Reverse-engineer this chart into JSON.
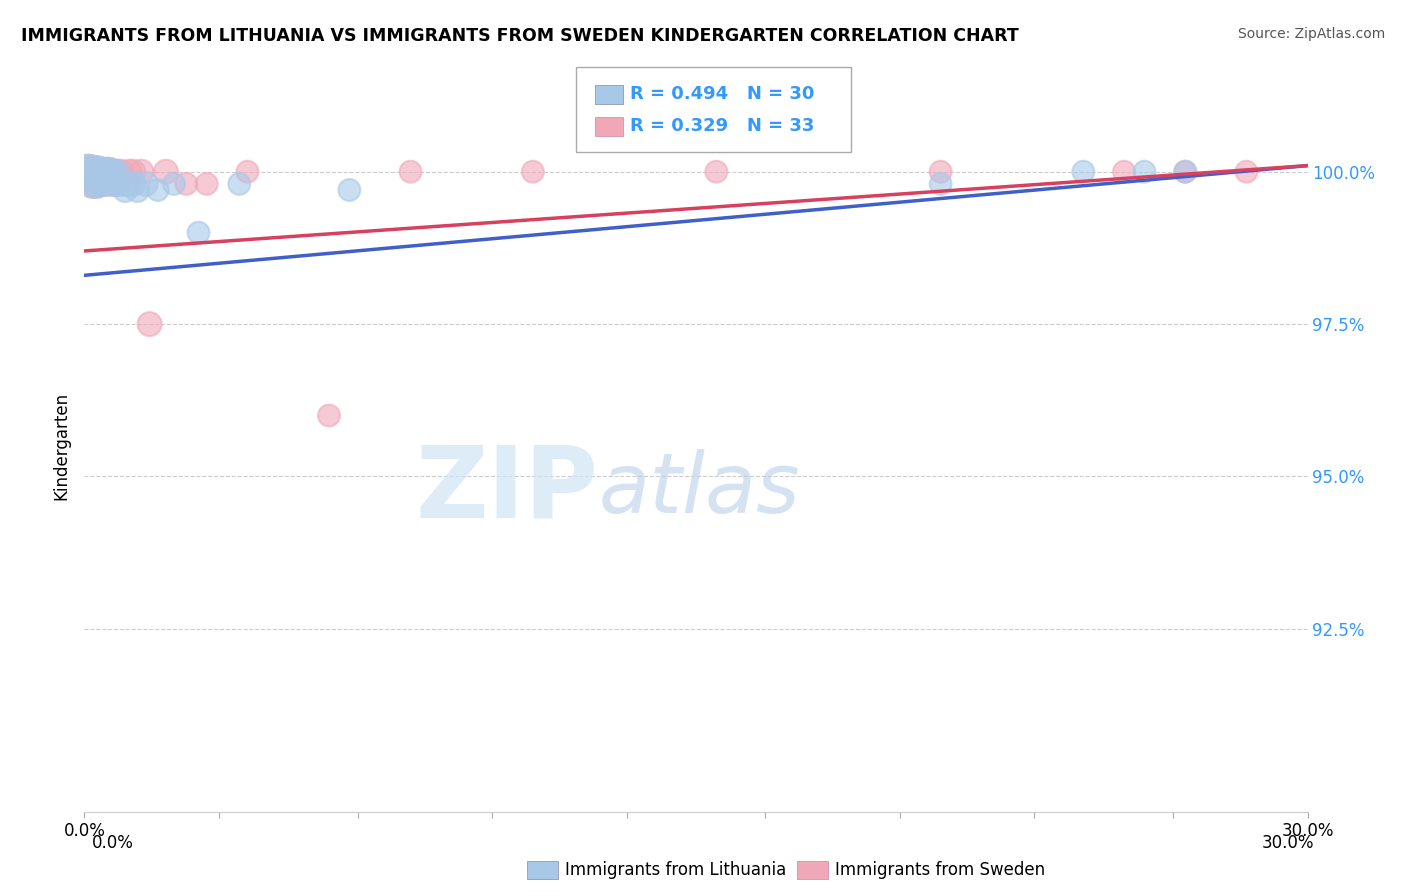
{
  "title": "IMMIGRANTS FROM LITHUANIA VS IMMIGRANTS FROM SWEDEN KINDERGARTEN CORRELATION CHART",
  "source": "Source: ZipAtlas.com",
  "ylabel": "Kindergarten",
  "xlim": [
    0.0,
    0.3
  ],
  "ylim": [
    0.895,
    1.015
  ],
  "xticks": [
    0.0,
    0.033,
    0.067,
    0.1,
    0.133,
    0.167,
    0.2,
    0.233,
    0.267,
    0.3
  ],
  "xticklabels": [
    "0.0%",
    "",
    "",
    "",
    "",
    "",
    "",
    "",
    "",
    "30.0%"
  ],
  "yticks": [
    0.925,
    0.95,
    0.975,
    1.0
  ],
  "yticklabels": [
    "92.5%",
    "95.0%",
    "97.5%",
    "100.0%"
  ],
  "lithuania_R": 0.494,
  "lithuania_N": 30,
  "sweden_R": 0.329,
  "sweden_N": 33,
  "lithuania_color": "#a8c8e8",
  "sweden_color": "#f0a8b8",
  "lithuania_line_color": "#4060c8",
  "sweden_line_color": "#d84060",
  "lithuania_x": [
    0.001,
    0.002,
    0.002,
    0.003,
    0.003,
    0.004,
    0.004,
    0.005,
    0.005,
    0.006,
    0.006,
    0.007,
    0.007,
    0.008,
    0.008,
    0.009,
    0.01,
    0.011,
    0.012,
    0.013,
    0.015,
    0.018,
    0.022,
    0.028,
    0.038,
    0.065,
    0.21,
    0.245,
    0.26,
    0.27
  ],
  "lithuania_y": [
    1.0,
    1.0,
    0.998,
    1.0,
    0.998,
    1.0,
    0.998,
    1.0,
    0.998,
    1.0,
    1.0,
    1.0,
    0.998,
    1.0,
    0.998,
    0.998,
    0.997,
    0.998,
    0.998,
    0.997,
    0.998,
    0.997,
    0.998,
    0.99,
    0.998,
    0.997,
    0.998,
    1.0,
    1.0,
    1.0
  ],
  "lithuania_sizes": [
    600,
    500,
    400,
    500,
    400,
    400,
    300,
    400,
    300,
    400,
    300,
    300,
    300,
    300,
    300,
    300,
    300,
    300,
    300,
    300,
    300,
    250,
    250,
    250,
    250,
    250,
    250,
    250,
    250,
    250
  ],
  "sweden_x": [
    0.001,
    0.002,
    0.002,
    0.003,
    0.003,
    0.004,
    0.004,
    0.005,
    0.005,
    0.006,
    0.006,
    0.007,
    0.007,
    0.008,
    0.008,
    0.009,
    0.01,
    0.011,
    0.012,
    0.014,
    0.016,
    0.02,
    0.025,
    0.03,
    0.04,
    0.06,
    0.08,
    0.11,
    0.155,
    0.21,
    0.255,
    0.27,
    0.285
  ],
  "sweden_y": [
    1.0,
    1.0,
    0.998,
    1.0,
    0.998,
    1.0,
    0.998,
    1.0,
    0.998,
    1.0,
    1.0,
    1.0,
    0.998,
    1.0,
    0.998,
    1.0,
    0.998,
    1.0,
    1.0,
    1.0,
    0.975,
    1.0,
    0.998,
    0.998,
    1.0,
    0.96,
    1.0,
    1.0,
    1.0,
    1.0,
    1.0,
    1.0,
    1.0
  ],
  "sweden_sizes": [
    600,
    500,
    400,
    500,
    400,
    400,
    300,
    400,
    300,
    400,
    300,
    300,
    300,
    300,
    300,
    300,
    300,
    300,
    300,
    300,
    300,
    300,
    250,
    250,
    250,
    250,
    250,
    250,
    250,
    250,
    250,
    250,
    250
  ],
  "watermark_zip": "ZIP",
  "watermark_atlas": "atlas",
  "grid_color": "#cccccc",
  "background_color": "#ffffff",
  "legend_blue_color": "#3355cc",
  "legend_text_color": "#3399ff"
}
